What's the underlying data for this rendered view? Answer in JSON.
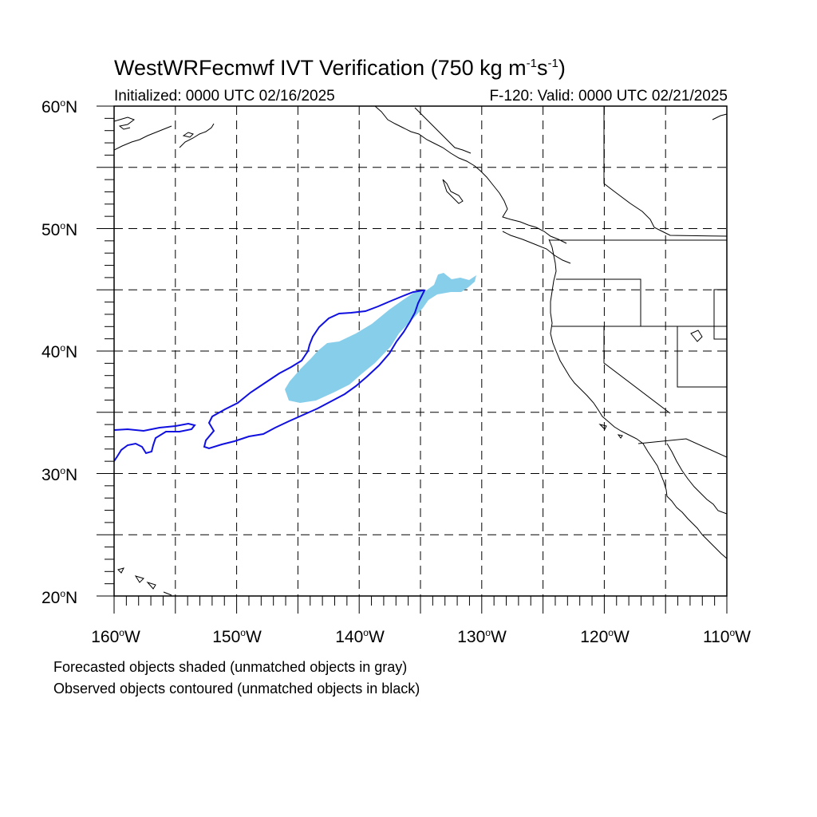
{
  "title": {
    "main_prefix": "WestWRFecmwf IVT Verification (750 kg m",
    "exp1": "-1",
    "mid": "s",
    "exp2": "-1",
    "suffix": ")"
  },
  "subtitle": {
    "initialized": "Initialized: 0000 UTC 02/16/2025",
    "valid": "F-120: Valid: 0000 UTC 02/21/2025"
  },
  "axes": {
    "lat_labels": [
      {
        "value": "60",
        "unit": "o",
        "hemi": "N"
      },
      {
        "value": "50",
        "unit": "o",
        "hemi": "N"
      },
      {
        "value": "40",
        "unit": "o",
        "hemi": "N"
      },
      {
        "value": "30",
        "unit": "o",
        "hemi": "N"
      },
      {
        "value": "20",
        "unit": "o",
        "hemi": "N"
      }
    ],
    "lon_labels": [
      {
        "value": "160",
        "unit": "o",
        "hemi": "W"
      },
      {
        "value": "150",
        "unit": "o",
        "hemi": "W"
      },
      {
        "value": "140",
        "unit": "o",
        "hemi": "W"
      },
      {
        "value": "130",
        "unit": "o",
        "hemi": "W"
      },
      {
        "value": "120",
        "unit": "o",
        "hemi": "W"
      },
      {
        "value": "110",
        "unit": "o",
        "hemi": "W"
      }
    ],
    "lat_range": [
      20,
      60
    ],
    "lon_range": [
      -160,
      -110
    ],
    "gridline_interval_deg": 5,
    "gridline_style": "dashed"
  },
  "legend_notes": {
    "line1": "Forecasted objects shaded (unmatched objects in gray)",
    "line2": "Observed objects contoured (unmatched objects in black)"
  },
  "colors": {
    "forecast_fill": "#87ceeb",
    "observed_contour": "#1010e0",
    "coastline": "#000000",
    "grid": "#000000"
  }
}
